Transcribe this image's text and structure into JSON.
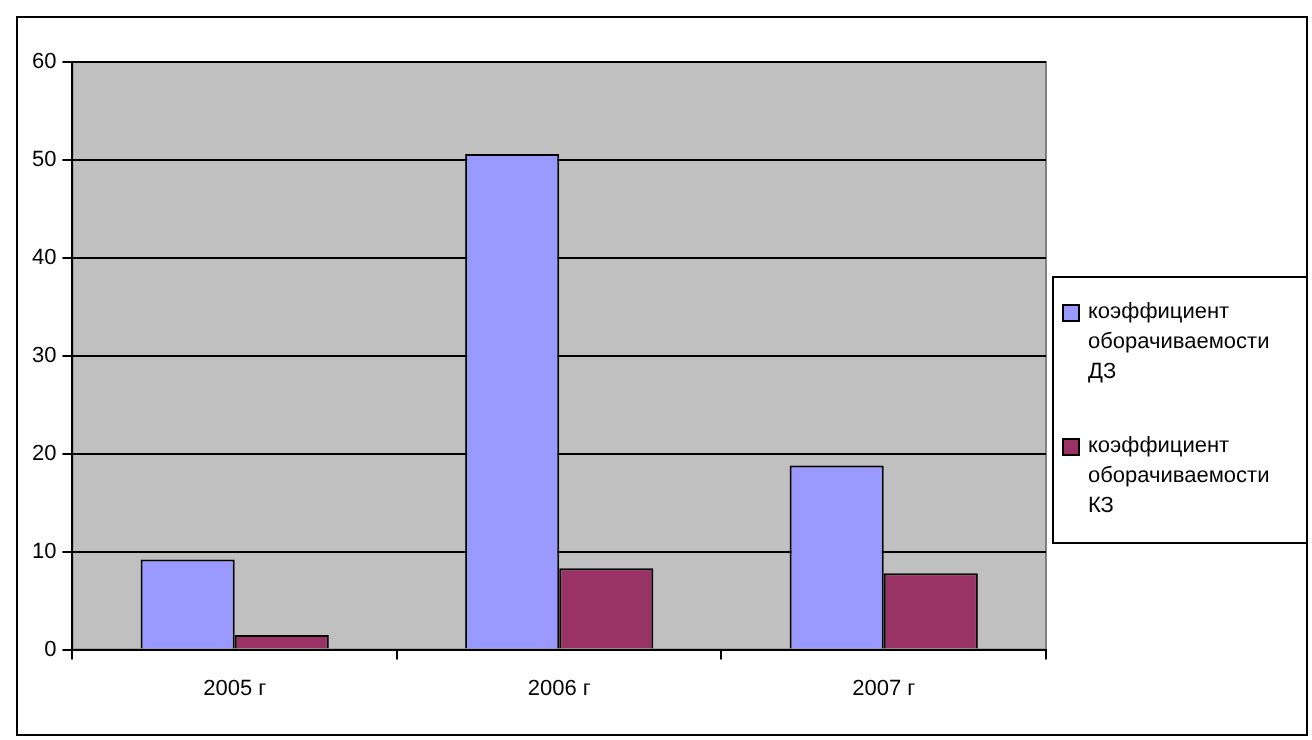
{
  "chart_data": {
    "type": "bar",
    "categories": [
      "2005 г",
      "2006 г",
      "2007 г"
    ],
    "series": [
      {
        "name": "коэффициент оборачиваемости ДЗ",
        "color": "#9999ff",
        "values": [
          9.2,
          50.6,
          18.8
        ]
      },
      {
        "name": "коэффициент оборачиваемости КЗ",
        "color": "#993366",
        "values": [
          1.5,
          8.3,
          7.8
        ]
      }
    ],
    "ylim": [
      0,
      60
    ],
    "yticks": [
      0,
      10,
      20,
      30,
      40,
      50,
      60
    ],
    "grid": "y",
    "legend": "right"
  }
}
